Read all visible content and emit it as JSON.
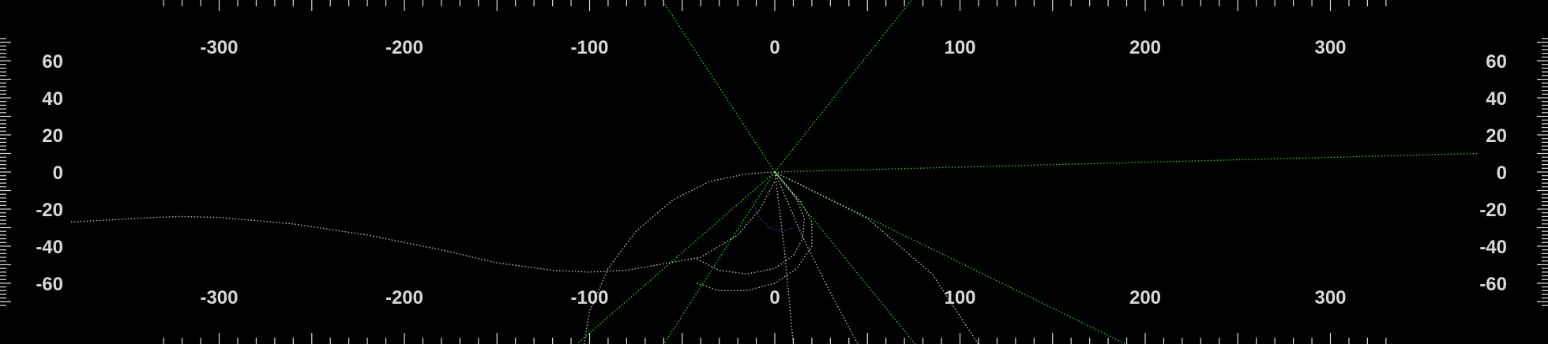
{
  "chart_data": {
    "type": "line",
    "title": "",
    "xlabel": "",
    "ylabel": "",
    "xlim": [
      -420,
      420
    ],
    "ylim": [
      -74,
      74
    ],
    "x_ticks": [
      -300,
      -200,
      -100,
      0,
      100,
      200,
      300
    ],
    "x_tick_labels": [
      "-300",
      "-200",
      "-100",
      "0",
      "100",
      "200",
      "300"
    ],
    "y_ticks": [
      60,
      40,
      20,
      0,
      -20,
      -40,
      -60
    ],
    "y_tick_labels": [
      "60",
      "40",
      "20",
      "0",
      "-20",
      "-40",
      "-60"
    ],
    "grid": false,
    "background": "#000000",
    "colors": {
      "ticks": "#d8d8d8",
      "green": "#22dd22",
      "white": "#c8c8c8",
      "blue": "#2a3fd6"
    },
    "origin": [
      0,
      0
    ],
    "green_rays": [
      {
        "to": [
          -61,
          93
        ]
      },
      {
        "to": [
          74,
          93
        ]
      },
      {
        "to": [
          380,
          10
        ]
      },
      {
        "to": [
          -107,
          -93
        ]
      },
      {
        "to": [
          -60,
          -93
        ]
      },
      {
        "to": [
          76,
          -93
        ]
      },
      {
        "to": [
          190,
          -93
        ]
      }
    ],
    "white_curves": [
      {
        "name": "",
        "points": [
          [
            -380,
            -27
          ],
          [
            -335,
            -24.5
          ],
          [
            -320,
            -24
          ],
          [
            -300,
            -24.5
          ],
          [
            -260,
            -28
          ],
          [
            -220,
            -34
          ],
          [
            -180,
            -42
          ],
          [
            -150,
            -49
          ],
          [
            -120,
            -53
          ],
          [
            -100,
            -54
          ],
          [
            -80,
            -53
          ],
          [
            -40,
            -46
          ],
          [
            -20,
            -34
          ],
          [
            -8,
            -20
          ],
          [
            0,
            -5
          ]
        ]
      },
      {
        "name": "",
        "points": [
          [
            -103,
            -93
          ],
          [
            -100,
            -75
          ],
          [
            -90,
            -52
          ],
          [
            -75,
            -32
          ],
          [
            -55,
            -15
          ],
          [
            -35,
            -5
          ],
          [
            -15,
            -1
          ],
          [
            0,
            0
          ]
        ]
      },
      {
        "name": "",
        "points": [
          [
            -42,
            -47
          ],
          [
            -30,
            -53
          ],
          [
            -15,
            -55
          ],
          [
            0,
            -52
          ],
          [
            10,
            -45
          ],
          [
            15,
            -36
          ],
          [
            16,
            -25
          ],
          [
            12,
            -15
          ],
          [
            6,
            -7
          ],
          [
            0,
            0
          ]
        ]
      },
      {
        "name": "",
        "points": [
          [
            -42,
            -60
          ],
          [
            -30,
            -64
          ],
          [
            -15,
            -64
          ],
          [
            0,
            -60
          ],
          [
            12,
            -52
          ],
          [
            20,
            -40
          ],
          [
            20,
            -27
          ],
          [
            14,
            -16
          ],
          [
            6,
            -7
          ],
          [
            0,
            0
          ]
        ]
      },
      {
        "name": "",
        "points": [
          [
            0,
            0
          ],
          [
            5,
            -40
          ],
          [
            10,
            -93
          ]
        ]
      },
      {
        "name": "",
        "points": [
          [
            0,
            0
          ],
          [
            15,
            -35
          ],
          [
            30,
            -65
          ],
          [
            45,
            -93
          ]
        ]
      },
      {
        "name": "",
        "points": [
          [
            0,
            0
          ],
          [
            50,
            -25
          ],
          [
            85,
            -55
          ],
          [
            110,
            -93
          ]
        ]
      }
    ],
    "blue_curves": [
      {
        "name": "",
        "points": [
          [
            -12,
            -16
          ],
          [
            -9,
            -24
          ],
          [
            -3,
            -30
          ],
          [
            4,
            -32
          ],
          [
            10,
            -30
          ]
        ]
      }
    ]
  }
}
